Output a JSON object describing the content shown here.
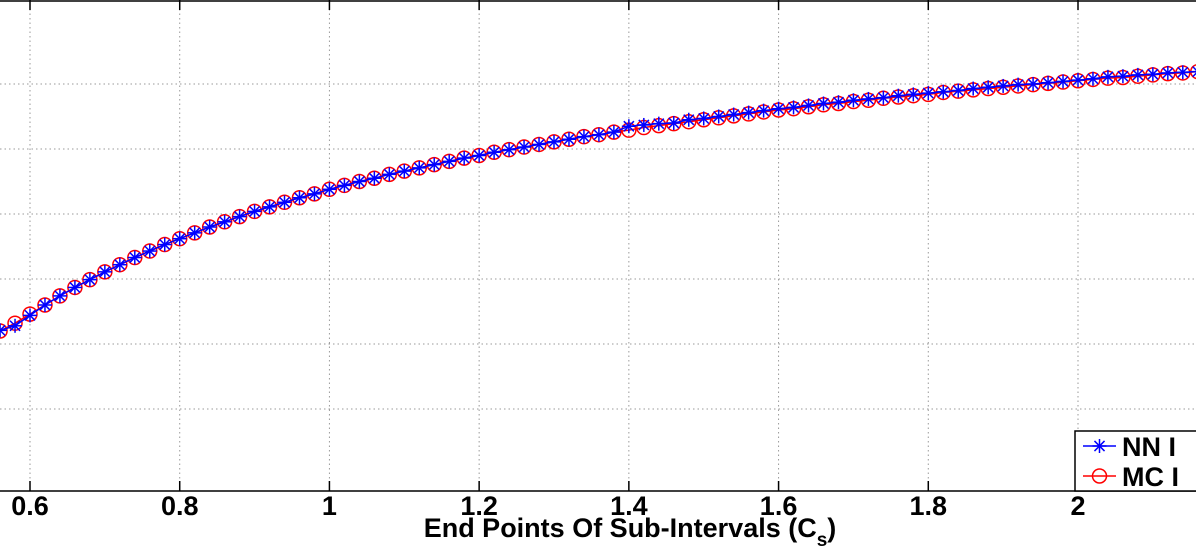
{
  "chart_data": {
    "type": "line",
    "title": "",
    "xlabel": "End Points Of Sub-Intervals (C",
    "xlabel_subscript": "s",
    "xlabel_suffix": ")",
    "ylabel": "",
    "xlim": [
      0.54,
      2.16
    ],
    "ylim": [
      0.0,
      0.67
    ],
    "xticks": [
      0.6,
      0.8,
      1,
      1.2,
      1.4,
      1.6,
      1.8,
      2
    ],
    "xtick_labels": [
      "0.6",
      "0.8",
      "1",
      "1.2",
      "1.4",
      "1.6",
      "1.8",
      "2"
    ],
    "yticks": [
      0.1,
      0.2,
      0.3,
      0.4,
      0.5,
      0.6
    ],
    "grid": true,
    "legend_placement": "bottom-right",
    "series": [
      {
        "name": "NN I",
        "color": "#0000ff",
        "marker": "asterisk",
        "x": [
          0.54,
          0.56,
          0.58,
          0.6,
          0.62,
          0.64,
          0.66,
          0.68,
          0.7,
          0.72,
          0.74,
          0.76,
          0.78,
          0.8,
          0.82,
          0.84,
          0.86,
          0.88,
          0.9,
          0.92,
          0.94,
          0.96,
          0.98,
          1.0,
          1.02,
          1.04,
          1.06,
          1.08,
          1.1,
          1.12,
          1.14,
          1.16,
          1.18,
          1.2,
          1.22,
          1.24,
          1.26,
          1.28,
          1.3,
          1.32,
          1.34,
          1.36,
          1.38,
          1.4,
          1.42,
          1.44,
          1.46,
          1.48,
          1.5,
          1.52,
          1.54,
          1.56,
          1.58,
          1.6,
          1.62,
          1.64,
          1.66,
          1.68,
          1.7,
          1.72,
          1.74,
          1.76,
          1.78,
          1.8,
          1.82,
          1.84,
          1.86,
          1.88,
          1.9,
          1.92,
          1.94,
          1.96,
          1.98,
          2.0,
          2.02,
          2.04,
          2.06,
          2.08,
          2.1,
          2.12,
          2.14,
          2.16
        ],
        "y": [
          0.219,
          0.221,
          0.228,
          0.244,
          0.26,
          0.274,
          0.287,
          0.299,
          0.311,
          0.322,
          0.333,
          0.343,
          0.353,
          0.362,
          0.371,
          0.38,
          0.388,
          0.396,
          0.404,
          0.411,
          0.418,
          0.425,
          0.431,
          0.438,
          0.444,
          0.45,
          0.455,
          0.461,
          0.466,
          0.471,
          0.476,
          0.481,
          0.486,
          0.49,
          0.495,
          0.499,
          0.503,
          0.507,
          0.511,
          0.515,
          0.519,
          0.522,
          0.526,
          0.535,
          0.537,
          0.539,
          0.54,
          0.545,
          0.547,
          0.55,
          0.553,
          0.556,
          0.559,
          0.562,
          0.564,
          0.567,
          0.57,
          0.572,
          0.575,
          0.577,
          0.579,
          0.582,
          0.584,
          0.586,
          0.588,
          0.59,
          0.593,
          0.595,
          0.597,
          0.599,
          0.6,
          0.602,
          0.604,
          0.606,
          0.608,
          0.611,
          0.612,
          0.614,
          0.615,
          0.617,
          0.618,
          0.619
        ]
      },
      {
        "name": "MC I",
        "color": "#ff0000",
        "marker": "circle",
        "x": [
          0.54,
          0.56,
          0.58,
          0.6,
          0.62,
          0.64,
          0.66,
          0.68,
          0.7,
          0.72,
          0.74,
          0.76,
          0.78,
          0.8,
          0.82,
          0.84,
          0.86,
          0.88,
          0.9,
          0.92,
          0.94,
          0.96,
          0.98,
          1.0,
          1.02,
          1.04,
          1.06,
          1.08,
          1.1,
          1.12,
          1.14,
          1.16,
          1.18,
          1.2,
          1.22,
          1.24,
          1.26,
          1.28,
          1.3,
          1.32,
          1.34,
          1.36,
          1.38,
          1.4,
          1.42,
          1.44,
          1.46,
          1.48,
          1.5,
          1.52,
          1.54,
          1.56,
          1.58,
          1.6,
          1.62,
          1.64,
          1.66,
          1.68,
          1.7,
          1.72,
          1.74,
          1.76,
          1.78,
          1.8,
          1.82,
          1.84,
          1.86,
          1.88,
          1.9,
          1.92,
          1.94,
          1.96,
          1.98,
          2.0,
          2.02,
          2.04,
          2.06,
          2.08,
          2.1,
          2.12,
          2.14,
          2.16
        ],
        "y": [
          0.212,
          0.22,
          0.232,
          0.246,
          0.26,
          0.274,
          0.287,
          0.299,
          0.311,
          0.322,
          0.333,
          0.343,
          0.353,
          0.362,
          0.371,
          0.38,
          0.388,
          0.396,
          0.404,
          0.411,
          0.418,
          0.425,
          0.431,
          0.438,
          0.444,
          0.45,
          0.455,
          0.461,
          0.466,
          0.471,
          0.476,
          0.481,
          0.486,
          0.49,
          0.495,
          0.499,
          0.503,
          0.507,
          0.511,
          0.515,
          0.519,
          0.522,
          0.526,
          0.529,
          0.533,
          0.536,
          0.539,
          0.542,
          0.545,
          0.548,
          0.551,
          0.554,
          0.557,
          0.56,
          0.562,
          0.565,
          0.568,
          0.57,
          0.573,
          0.575,
          0.578,
          0.58,
          0.582,
          0.584,
          0.587,
          0.589,
          0.591,
          0.593,
          0.595,
          0.597,
          0.599,
          0.601,
          0.603,
          0.605,
          0.607,
          0.609,
          0.61,
          0.612,
          0.614,
          0.616,
          0.617,
          0.619
        ]
      }
    ]
  }
}
